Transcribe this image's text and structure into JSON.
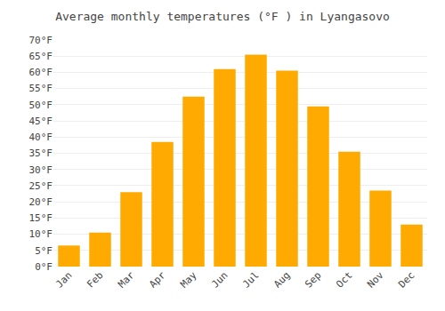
{
  "chart_data": {
    "type": "bar",
    "title": "Average monthly temperatures (°F ) in Lyangasovo",
    "categories": [
      "Jan",
      "Feb",
      "Mar",
      "Apr",
      "May",
      "Jun",
      "Jul",
      "Aug",
      "Sep",
      "Oct",
      "Nov",
      "Dec"
    ],
    "values": [
      6.5,
      10.5,
      23,
      38.5,
      52.5,
      61,
      65.5,
      60.5,
      49.5,
      35.5,
      23.5,
      13
    ],
    "color": "#FFAA00",
    "ylim": [
      0,
      70
    ],
    "yticks": [
      {
        "value": 0,
        "label": "0°F"
      },
      {
        "value": 5,
        "label": "5°F"
      },
      {
        "value": 10,
        "label": "10°F"
      },
      {
        "value": 15,
        "label": "15°F"
      },
      {
        "value": 20,
        "label": "20°F"
      },
      {
        "value": 25,
        "label": "25°F"
      },
      {
        "value": 30,
        "label": "30°F"
      },
      {
        "value": 35,
        "label": "35°F"
      },
      {
        "value": 40,
        "label": "40°F"
      },
      {
        "value": 45,
        "label": "45°F"
      },
      {
        "value": 50,
        "label": "50°F"
      },
      {
        "value": 55,
        "label": "55°F"
      },
      {
        "value": 60,
        "label": "60°F"
      },
      {
        "value": 65,
        "label": "65°F"
      },
      {
        "value": 70,
        "label": "70°F"
      }
    ],
    "grid": true
  }
}
